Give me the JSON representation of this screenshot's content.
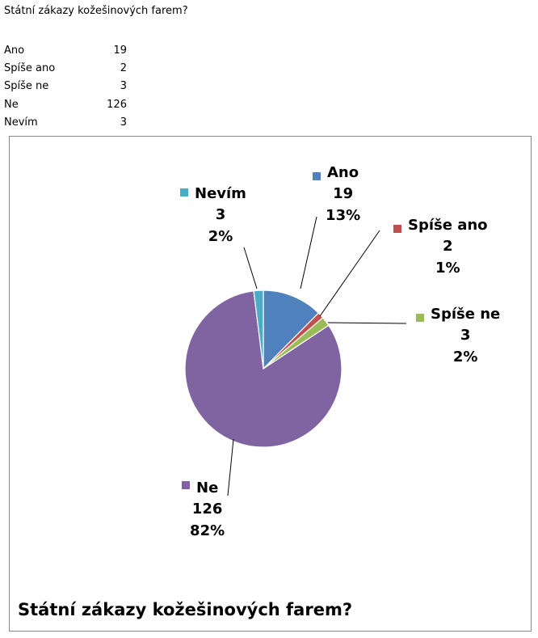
{
  "sheet": {
    "title": "Státní zákazy kožešinových farem?",
    "rows": [
      {
        "label": "Ano",
        "value": "19"
      },
      {
        "label": "Spíše ano",
        "value": "2"
      },
      {
        "label": "Spíše ne",
        "value": "3"
      },
      {
        "label": "Ne",
        "value": "126"
      },
      {
        "label": "Nevím",
        "value": "3"
      }
    ]
  },
  "chart_data": {
    "type": "pie",
    "title": "Státní zákazy kožešinových farem?",
    "categories": [
      "Ano",
      "Spíše ano",
      "Spíše ne",
      "Ne",
      "Nevím"
    ],
    "values": [
      19,
      2,
      3,
      126,
      3
    ],
    "percent_labels": [
      "13%",
      "1%",
      "2%",
      "82%",
      "2%"
    ],
    "colors": [
      "#4F81BD",
      "#C0504D",
      "#9BBB59",
      "#8064A2",
      "#4BACC6"
    ],
    "start_angle": "top, clockwise",
    "data_labels": "category, value, percent with leader lines"
  }
}
